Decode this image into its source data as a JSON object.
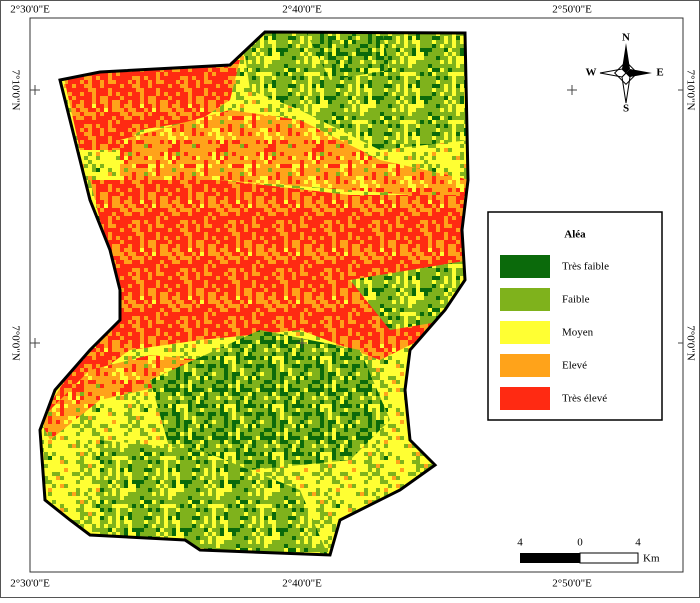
{
  "map": {
    "coordinates": {
      "top": [
        "2°30'0\"E",
        "2°40'0\"E",
        "2°50'0\"E"
      ],
      "bottom": [
        "2°30'0\"E",
        "2°40'0\"E",
        "2°50'0\"E"
      ],
      "left": [
        "7°10'0\"N",
        "7°0'0\"N"
      ],
      "right": [
        "7°10'0\"N",
        "7°0'0\"N"
      ]
    },
    "legend": {
      "title": "Aléa",
      "items": [
        {
          "label": "Très faible",
          "color": "#0b6a0b"
        },
        {
          "label": "Faible",
          "color": "#7fb21c"
        },
        {
          "label": "Moyen",
          "color": "#ffff33"
        },
        {
          "label": "Elevé",
          "color": "#ffa31a"
        },
        {
          "label": "Très élevé",
          "color": "#ff2a12"
        }
      ]
    },
    "north_arrow": {
      "n": "N",
      "s": "S",
      "w": "W",
      "e": "E"
    },
    "scale_bar": {
      "labels": [
        "4",
        "0",
        "4"
      ],
      "unit": "Km"
    }
  }
}
